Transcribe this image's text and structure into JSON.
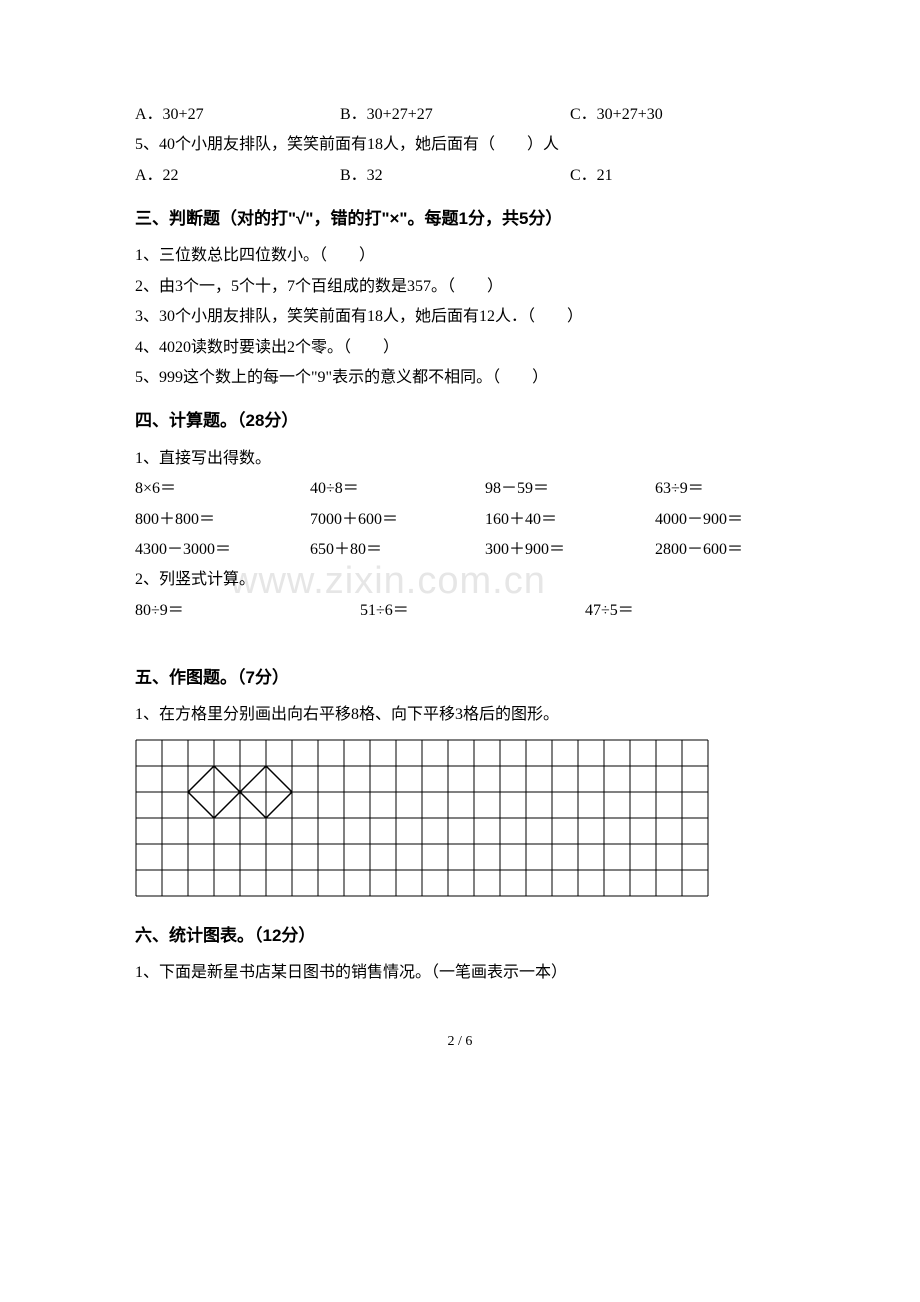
{
  "q4": {
    "options": {
      "a": "A．30+27",
      "b": "B．30+27+27",
      "c": "C．30+27+30"
    }
  },
  "q5": {
    "text": "5、40个小朋友排队，笑笑前面有18人，她后面有（　　）人",
    "options": {
      "a": "A．22",
      "b": "B．32",
      "c": "C．21"
    }
  },
  "section3": {
    "header": "三、判断题（对的打\"√\"，错的打\"×\"。每题1分，共5分）",
    "items": [
      "1、三位数总比四位数小。（　　）",
      "2、由3个一，5个十，7个百组成的数是357。（　　）",
      "3、30个小朋友排队，笑笑前面有18人，她后面有12人．（　　）",
      "4、4020读数时要读出2个零。（　　）",
      "5、999这个数上的每一个\"9\"表示的意义都不相同。（　　）"
    ]
  },
  "section4": {
    "header": "四、计算题。（28分）",
    "sub1": "1、直接写出得数。",
    "calc_rows": [
      [
        "8×6＝",
        "40÷8＝",
        "98－59＝",
        "63÷9＝"
      ],
      [
        "800＋800＝",
        "7000＋600＝",
        "160＋40＝",
        "4000－900＝"
      ],
      [
        "4300－3000＝",
        "650＋80＝",
        "300＋900＝",
        "2800－600＝"
      ]
    ],
    "sub2": "2、列竖式计算。",
    "vertical_row": [
      "80÷9＝",
      "51÷6＝",
      "47÷5＝"
    ]
  },
  "section5": {
    "header": "五、作图题。（7分）",
    "q1": "1、在方格里分别画出向右平移8格、向下平移3格后的图形。"
  },
  "section6": {
    "header": "六、统计图表。（12分）",
    "q1": "1、下面是新星书店某日图书的销售情况。（一笔画表示一本）"
  },
  "grid": {
    "cols": 22,
    "rows": 6,
    "cell_size": 26,
    "stroke_color": "#000000",
    "stroke_width": 1,
    "background": "#ffffff",
    "shape_lines": [
      [
        2,
        2,
        3,
        3
      ],
      [
        3,
        3,
        4,
        2
      ],
      [
        4,
        2,
        3,
        1
      ],
      [
        3,
        1,
        2,
        2
      ],
      [
        4,
        2,
        5,
        3
      ],
      [
        5,
        3,
        6,
        2
      ],
      [
        6,
        2,
        5,
        1
      ],
      [
        5,
        1,
        4,
        2
      ]
    ]
  },
  "watermark_text": "www.zixin.com.cn",
  "page_number": "2 / 6",
  "colors": {
    "text": "#000000",
    "background": "#ffffff",
    "watermark": "#e6e6e6"
  }
}
